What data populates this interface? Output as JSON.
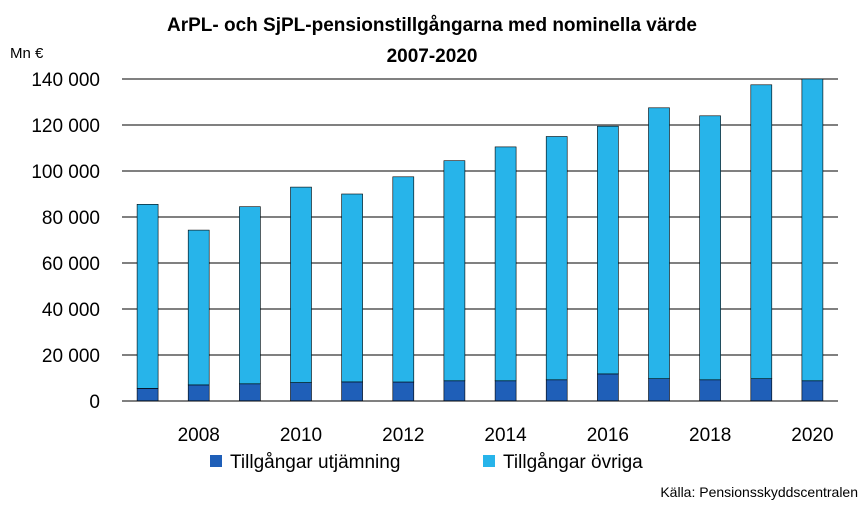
{
  "chart_data": {
    "type": "bar",
    "stacked": true,
    "title": "ArPL- och SjPL-pensionstillgångarna med nominella värde",
    "subtitle": "2007-2020",
    "unit_label": "Mn €",
    "ylim": [
      0,
      140000
    ],
    "yticks": [
      0,
      20000,
      40000,
      60000,
      80000,
      100000,
      120000,
      140000
    ],
    "ytick_labels": [
      "0",
      "20 000",
      "40 000",
      "60 000",
      "80 000",
      "100 000",
      "120 000",
      "140 000"
    ],
    "categories": [
      2007,
      2008,
      2009,
      2010,
      2011,
      2012,
      2013,
      2014,
      2015,
      2016,
      2017,
      2018,
      2019,
      2020
    ],
    "xtick_labels": [
      "2008",
      "2010",
      "2012",
      "2014",
      "2016",
      "2018",
      "2020"
    ],
    "grid": "horizontal",
    "legend_position": "bottom",
    "series": [
      {
        "name": "Tillgångar utjämning",
        "color": "#1f5fb8",
        "values": [
          5500,
          7000,
          7500,
          8000,
          8300,
          8300,
          8800,
          8800,
          9200,
          11800,
          9700,
          9200,
          9700,
          8800
        ]
      },
      {
        "name": "Tillgångar övriga",
        "color": "#27b4ea",
        "values": [
          80000,
          67300,
          77000,
          85000,
          81700,
          89200,
          95700,
          101700,
          105800,
          107700,
          117800,
          114800,
          127800,
          131200
        ]
      }
    ],
    "source": "Källa: Pensionsskyddscentralen"
  }
}
